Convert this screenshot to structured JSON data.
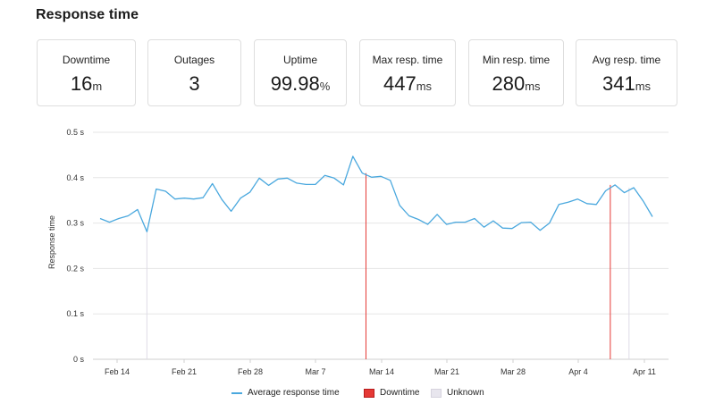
{
  "title": "Response time",
  "stats": [
    {
      "label": "Downtime",
      "value": "16",
      "unit": "m"
    },
    {
      "label": "Outages",
      "value": "3",
      "unit": ""
    },
    {
      "label": "Uptime",
      "value": "99.98",
      "unit": "%"
    },
    {
      "label": "Max resp. time",
      "value": "447",
      "unit": "ms"
    },
    {
      "label": "Min resp. time",
      "value": "280",
      "unit": "ms"
    },
    {
      "label": "Avg resp. time",
      "value": "341",
      "unit": "ms"
    }
  ],
  "chart_data": {
    "type": "line",
    "ylabel": "Response time",
    "ylim": [
      0,
      0.5
    ],
    "y_ticks": [
      "0 s",
      "0.1 s",
      "0.2 s",
      "0.3 s",
      "0.4 s",
      "0.5 s"
    ],
    "x_ticks": [
      "Feb 14",
      "Feb 21",
      "Feb 28",
      "Mar 7",
      "Mar 14",
      "Mar 21",
      "Mar 28",
      "Apr 4",
      "Apr 11"
    ],
    "series": [
      {
        "name": "Average response time",
        "color": "#4aa8de",
        "values": [
          0.31,
          0.302,
          0.31,
          0.316,
          0.33,
          0.281,
          0.375,
          0.37,
          0.353,
          0.355,
          0.353,
          0.356,
          0.387,
          0.352,
          0.326,
          0.355,
          0.368,
          0.399,
          0.383,
          0.397,
          0.399,
          0.388,
          0.385,
          0.385,
          0.405,
          0.399,
          0.384,
          0.447,
          0.41,
          0.401,
          0.403,
          0.394,
          0.339,
          0.316,
          0.308,
          0.297,
          0.319,
          0.297,
          0.302,
          0.302,
          0.31,
          0.291,
          0.305,
          0.289,
          0.288,
          0.301,
          0.302,
          0.284,
          0.3,
          0.341,
          0.346,
          0.353,
          0.343,
          0.341,
          0.371,
          0.384,
          0.367,
          0.378,
          0.349,
          0.314
        ]
      }
    ],
    "events": [
      {
        "type": "unknown",
        "index": 5
      },
      {
        "type": "downtime",
        "index": 28.4
      },
      {
        "type": "downtime",
        "index": 54.5
      },
      {
        "type": "unknown",
        "index": 56.5
      }
    ],
    "legend": [
      {
        "label": "Average response time",
        "kind": "line",
        "color": "#4aa8de"
      },
      {
        "label": "Downtime",
        "kind": "box",
        "color": "#e53935"
      },
      {
        "label": "Unknown",
        "kind": "box",
        "color": "#e8e6ee"
      }
    ],
    "legend_position": "bottom"
  }
}
